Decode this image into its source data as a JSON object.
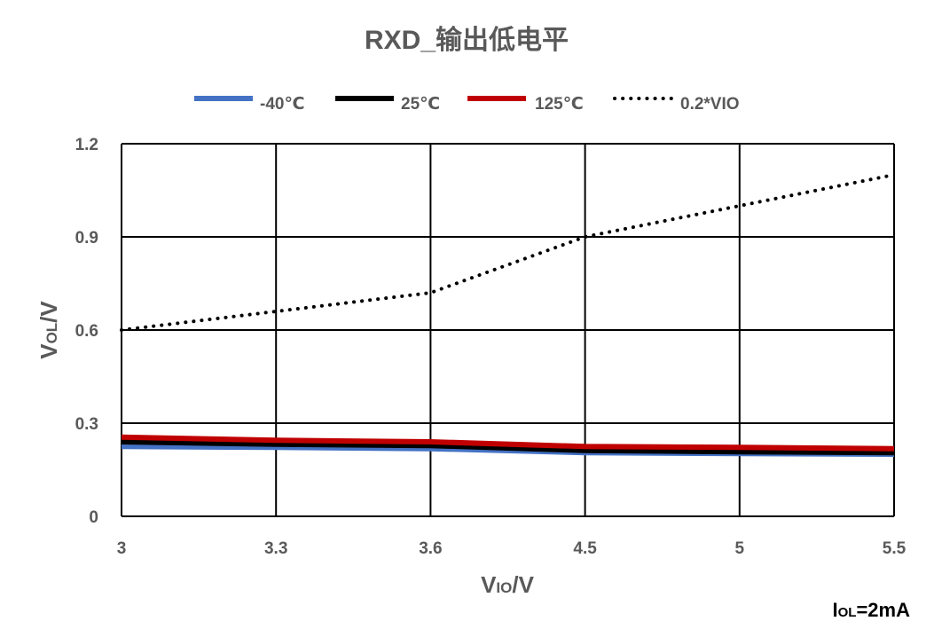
{
  "chart_data": {
    "type": "line",
    "title": "RXD_输出低电平",
    "categories": [
      "3",
      "3.3",
      "3.6",
      "4.5",
      "5",
      "5.5"
    ],
    "ylim": [
      0,
      1.2
    ],
    "yticks": [
      "0",
      "0.3",
      "0.6",
      "0.9",
      "1.2"
    ],
    "xlabel": {
      "main": "V",
      "sub": "IO",
      "tail": "/V"
    },
    "ylabel": {
      "main": "V",
      "sub": "OL",
      "tail": "/V"
    },
    "note": {
      "main": "I",
      "sub": "OL",
      "tail": "=2mA"
    },
    "grid": true,
    "legend_position": "top",
    "series": [
      {
        "name": "-40℃",
        "color": "#4472C4",
        "dash": "solid",
        "values": [
          0.225,
          0.222,
          0.218,
          0.205,
          0.202,
          0.2
        ]
      },
      {
        "name": "25℃",
        "color": "#000000",
        "dash": "solid",
        "values": [
          0.24,
          0.232,
          0.228,
          0.212,
          0.208,
          0.205
        ]
      },
      {
        "name": "125℃",
        "color": "#C00000",
        "dash": "solid",
        "values": [
          0.255,
          0.245,
          0.24,
          0.225,
          0.222,
          0.218
        ]
      },
      {
        "name": "0.2*VIO",
        "color": "#000000",
        "dash": "dotted",
        "values": [
          0.6,
          0.66,
          0.72,
          0.9,
          1.0,
          1.1
        ]
      }
    ]
  }
}
